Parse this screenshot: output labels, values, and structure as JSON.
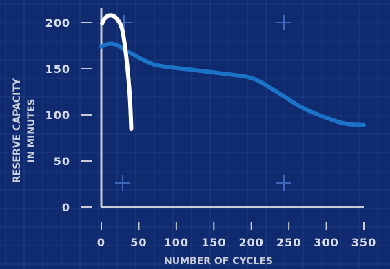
{
  "chart_data": {
    "type": "line",
    "xlabel": "NUMBER OF CYCLES",
    "ylabel_lines": [
      "RESERVE CAPACITY",
      "IN MINUTES"
    ],
    "xlim": [
      0,
      350
    ],
    "ylim": [
      0,
      200
    ],
    "x_ticks": [
      0,
      50,
      100,
      150,
      200,
      250,
      300,
      350
    ],
    "y_ticks": [
      0,
      50,
      100,
      150,
      200
    ],
    "grid": true,
    "series": [
      {
        "color": "#1a73c7",
        "points": [
          [
            0,
            174
          ],
          [
            10,
            177
          ],
          [
            20,
            176
          ],
          [
            35,
            169
          ],
          [
            60,
            158
          ],
          [
            80,
            153
          ],
          [
            120,
            149
          ],
          [
            160,
            145
          ],
          [
            200,
            140
          ],
          [
            230,
            127
          ],
          [
            270,
            107
          ],
          [
            310,
            94
          ],
          [
            330,
            90
          ],
          [
            350,
            89
          ]
        ]
      },
      {
        "color": "#ffffff",
        "points": [
          [
            1,
            199
          ],
          [
            5,
            205
          ],
          [
            12,
            208
          ],
          [
            20,
            205
          ],
          [
            27,
            195
          ],
          [
            31,
            178
          ],
          [
            35,
            150
          ],
          [
            38,
            120
          ],
          [
            40,
            85
          ]
        ]
      }
    ]
  },
  "colors": {
    "background": "#0f2a6e",
    "axis": "#c8ccd6",
    "grid": "#2a4a95",
    "label": "#d9dde8"
  }
}
